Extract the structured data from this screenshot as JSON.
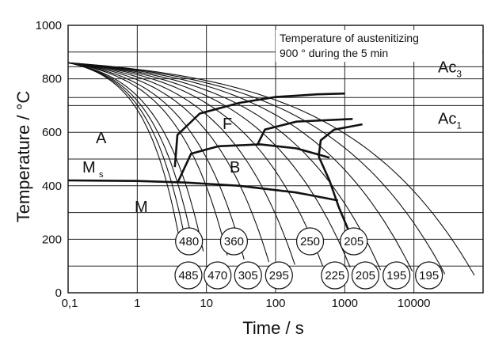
{
  "chart_data": {
    "type": "line",
    "title": "",
    "xlabel": "Time / s",
    "ylabel": "Temperature / °C",
    "x_scale": "log",
    "xlim": [
      0.1,
      100000
    ],
    "ylim": [
      0,
      1000
    ],
    "grid": true,
    "x_ticks": [
      "0,1",
      "1",
      "10",
      "100",
      "1000",
      "10000"
    ],
    "y_ticks": [
      "0",
      "200",
      "400",
      "600",
      "800",
      "1000"
    ],
    "annotation": {
      "line1": "Temperature of austenitizing",
      "line2": "900 ° during the 5 min"
    },
    "critical_temperatures": [
      {
        "label": "Ac",
        "sub": "3",
        "value": 845
      },
      {
        "label": "Ac",
        "sub": "1",
        "value": 730
      }
    ],
    "region_labels": {
      "austenite": "A",
      "ferrite": "F",
      "bainite": "B",
      "martensite": "M",
      "ms": "M",
      "ms_sub": "s"
    },
    "hardness_upper": [
      {
        "value": "480",
        "t": 5.6
      },
      {
        "value": "360",
        "t": 25
      },
      {
        "value": "250",
        "t": 315
      },
      {
        "value": "205",
        "t": 1350
      }
    ],
    "hardness_lower": [
      {
        "value": "485",
        "t": 5.5
      },
      {
        "value": "470",
        "t": 14.5
      },
      {
        "value": "305",
        "t": 40
      },
      {
        "value": "295",
        "t": 112
      },
      {
        "value": "225",
        "t": 720
      },
      {
        "value": "205",
        "t": 1990
      },
      {
        "value": "195",
        "t": 5600
      },
      {
        "value": "195",
        "t": 16500
      }
    ],
    "cooling_curves": [
      {
        "t_start": 0.1,
        "T_start": 860,
        "t_end": 4,
        "T_end": 210
      },
      {
        "t_start": 0.1,
        "T_start": 860,
        "t_end": 5,
        "T_end": 190
      },
      {
        "t_start": 0.1,
        "T_start": 860,
        "t_end": 6.5,
        "T_end": 170
      },
      {
        "t_start": 0.1,
        "T_start": 860,
        "t_end": 9,
        "T_end": 155
      },
      {
        "t_start": 0.1,
        "T_start": 860,
        "t_end": 20,
        "T_end": 140
      },
      {
        "t_start": 0.1,
        "T_start": 860,
        "t_end": 35,
        "T_end": 125
      },
      {
        "t_start": 0.1,
        "T_start": 860,
        "t_end": 80,
        "T_end": 115
      },
      {
        "t_start": 0.1,
        "T_start": 860,
        "t_end": 190,
        "T_end": 105
      },
      {
        "t_start": 0.1,
        "T_start": 860,
        "t_end": 480,
        "T_end": 100
      },
      {
        "t_start": 0.1,
        "T_start": 860,
        "t_end": 1200,
        "T_end": 95
      },
      {
        "t_start": 0.1,
        "T_start": 860,
        "t_end": 3300,
        "T_end": 85
      },
      {
        "t_start": 0.1,
        "T_start": 860,
        "t_end": 9500,
        "T_end": 80
      },
      {
        "t_start": 0.1,
        "T_start": 860,
        "t_end": 28000,
        "T_end": 70
      },
      {
        "t_start": 0.1,
        "T_start": 860,
        "t_end": 75000,
        "T_end": 65
      }
    ],
    "transformation_lines": [
      {
        "name": "Ms",
        "points": [
          [
            0.1,
            420
          ],
          [
            1,
            418
          ],
          [
            5,
            412
          ],
          [
            30,
            400
          ],
          [
            200,
            375
          ],
          [
            800,
            345
          ]
        ]
      },
      {
        "name": "ferrite-start",
        "points": [
          [
            3.5,
            470
          ],
          [
            3.8,
            590
          ],
          [
            8,
            670
          ],
          [
            30,
            710
          ],
          [
            100,
            732
          ],
          [
            400,
            742
          ],
          [
            1000,
            745
          ]
        ]
      },
      {
        "name": "bainite-start",
        "points": [
          [
            3.8,
            410
          ],
          [
            6,
            520
          ],
          [
            15,
            548
          ],
          [
            60,
            555
          ],
          [
            200,
            540
          ],
          [
            600,
            505
          ]
        ]
      },
      {
        "name": "ferrite-2",
        "points": [
          [
            55,
            555
          ],
          [
            70,
            610
          ],
          [
            200,
            640
          ],
          [
            1300,
            650
          ]
        ]
      },
      {
        "name": "ferrite-3",
        "points": [
          [
            420,
            510
          ],
          [
            450,
            570
          ],
          [
            700,
            610
          ],
          [
            1800,
            630
          ]
        ]
      },
      {
        "name": "bainite-finish",
        "points": [
          [
            420,
            510
          ],
          [
            600,
            420
          ],
          [
            820,
            320
          ],
          [
            1150,
            230
          ]
        ]
      }
    ]
  }
}
